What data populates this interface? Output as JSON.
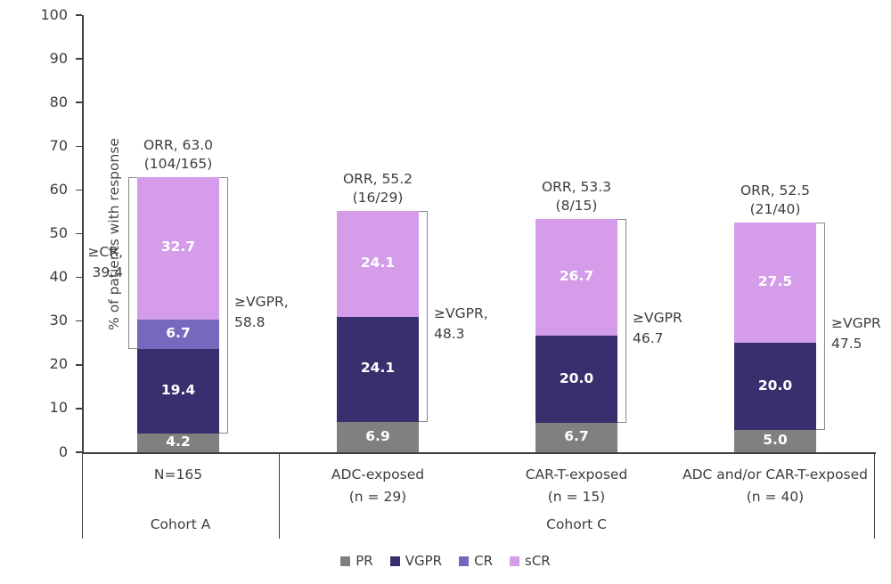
{
  "chart_data": {
    "type": "bar",
    "subtype": "stacked-bar",
    "title": "",
    "ylabel": "% of patients with response",
    "xlabel": "",
    "ylim": [
      0,
      100
    ],
    "yticks": [
      0,
      10,
      20,
      30,
      40,
      50,
      60,
      70,
      80,
      90,
      100
    ],
    "grid": false,
    "legend_position": "bottom-center",
    "series": [
      {
        "name": "PR",
        "color": "#808080"
      },
      {
        "name": "VGPR",
        "color": "#38306e"
      },
      {
        "name": "CR",
        "color": "#7469bd"
      },
      {
        "name": "sCR",
        "color": "#d59ce9"
      }
    ],
    "bars": [
      {
        "axis_label_lines": [
          "N=165"
        ],
        "group": "Cohort A",
        "segments": [
          {
            "series": "PR",
            "value": 4.2,
            "label": "4.2"
          },
          {
            "series": "VGPR",
            "value": 19.4,
            "label": "19.4"
          },
          {
            "series": "CR",
            "value": 6.7,
            "label": "6.7"
          },
          {
            "series": "sCR",
            "value": 32.7,
            "label": "32.7"
          }
        ],
        "total_label_lines": [
          "ORR, 63.0",
          "(104/165)"
        ],
        "brackets": [
          {
            "side": "left",
            "from": 23.6,
            "to": 63.0,
            "label_lines": [
              "≥CR,",
              "39.4"
            ]
          },
          {
            "side": "right",
            "from": 4.2,
            "to": 63.0,
            "label_lines": [
              "≥VGPR,",
              "58.8"
            ]
          }
        ]
      },
      {
        "axis_label_lines": [
          "ADC-exposed",
          "(n = 29)"
        ],
        "group": "Cohort C",
        "segments": [
          {
            "series": "PR",
            "value": 6.9,
            "label": "6.9"
          },
          {
            "series": "VGPR",
            "value": 24.1,
            "label": "24.1"
          },
          {
            "series": "CR",
            "value": 0,
            "label": ""
          },
          {
            "series": "sCR",
            "value": 24.1,
            "label": "24.1"
          }
        ],
        "total_label_lines": [
          "ORR, 55.2",
          "(16/29)"
        ],
        "brackets": [
          {
            "side": "right",
            "from": 6.9,
            "to": 55.2,
            "label_lines": [
              "≥VGPR,",
              "48.3"
            ]
          }
        ]
      },
      {
        "axis_label_lines": [
          "CAR-T-exposed",
          "(n = 15)"
        ],
        "group": "Cohort C",
        "segments": [
          {
            "series": "PR",
            "value": 6.7,
            "label": "6.7"
          },
          {
            "series": "VGPR",
            "value": 20.0,
            "label": "20.0"
          },
          {
            "series": "CR",
            "value": 0,
            "label": ""
          },
          {
            "series": "sCR",
            "value": 26.7,
            "label": "26.7"
          }
        ],
        "total_label_lines": [
          "ORR, 53.3",
          "(8/15)"
        ],
        "brackets": [
          {
            "side": "right",
            "from": 6.7,
            "to": 53.3,
            "label_lines": [
              "≥VGPR",
              "46.7"
            ]
          }
        ]
      },
      {
        "axis_label_lines": [
          "ADC and/or CAR-T-exposed",
          "(n = 40)"
        ],
        "group": "Cohort C",
        "segments": [
          {
            "series": "PR",
            "value": 5.0,
            "label": "5.0"
          },
          {
            "series": "VGPR",
            "value": 20.0,
            "label": "20.0"
          },
          {
            "series": "CR",
            "value": 0,
            "label": ""
          },
          {
            "series": "sCR",
            "value": 27.5,
            "label": "27.5"
          }
        ],
        "total_label_lines": [
          "ORR, 52.5",
          "(21/40)"
        ],
        "brackets": [
          {
            "side": "right",
            "from": 5.0,
            "to": 52.5,
            "label_lines": [
              "≥VGPR",
              "47.5"
            ]
          }
        ]
      }
    ],
    "group_labels": [
      {
        "label": "Cohort A",
        "region": 0
      },
      {
        "label": "Cohort C",
        "region": 1
      }
    ],
    "legend": [
      "PR",
      "VGPR",
      "CR",
      "sCR"
    ],
    "colors": {
      "text": "#3d3d3d",
      "axis": "#3f3f3f",
      "bracket": "#8a8a8a",
      "value_label": "#ffffff"
    }
  }
}
